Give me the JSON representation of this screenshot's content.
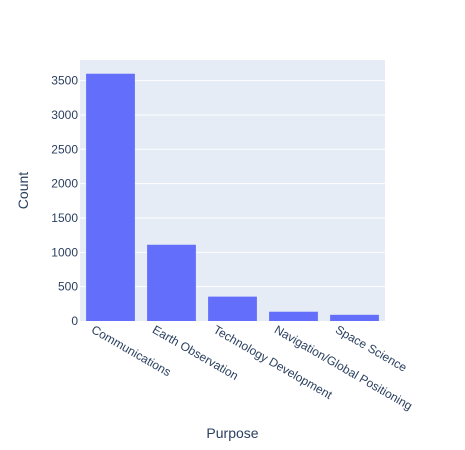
{
  "chart_data": {
    "type": "bar",
    "categories": [
      "Communications",
      "Earth Observation",
      "Technology Development",
      "Navigation/Global Positioning",
      "Space Science"
    ],
    "values": [
      3600,
      1110,
      355,
      135,
      90
    ],
    "xlabel": "Purpose",
    "ylabel": "Count",
    "ylim": [
      0,
      3800
    ],
    "yticks": [
      0,
      500,
      1000,
      1500,
      2000,
      2500,
      3000,
      3500
    ],
    "grid": true,
    "colors": {
      "bar": "#636efa",
      "plot_bg": "#e5ecf6",
      "grid": "#ffffff",
      "text": "#2a3f5f"
    }
  }
}
